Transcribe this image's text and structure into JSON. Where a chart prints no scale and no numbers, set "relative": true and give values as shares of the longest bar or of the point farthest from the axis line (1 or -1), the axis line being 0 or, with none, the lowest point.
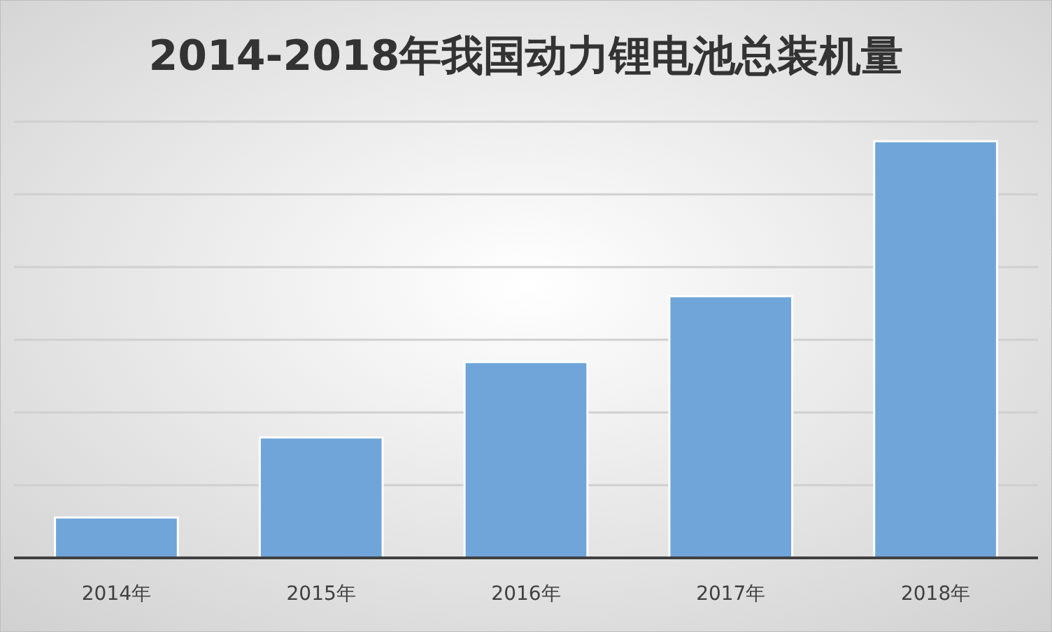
{
  "chart_data": {
    "type": "bar",
    "title": "2014-2018年我国动力锂电池总装机量",
    "categories": [
      "2014年",
      "2015年",
      "2016年",
      "2017年",
      "2018年"
    ],
    "values": [
      0.097,
      0.289,
      0.47,
      0.628,
      1
    ],
    "color": "#6fa5d9",
    "relative": true,
    "grid": true
  }
}
